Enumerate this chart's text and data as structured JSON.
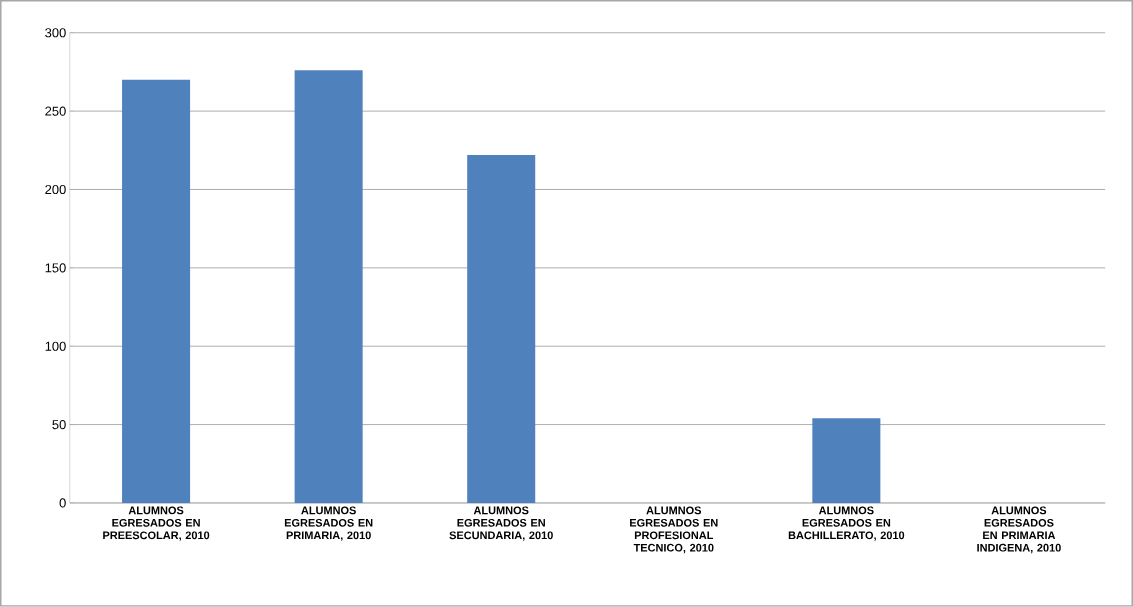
{
  "chart_data": {
    "type": "bar",
    "categories": [
      "ALUMNOS EGRESADOS EN PREESCOLAR, 2010",
      "ALUMNOS EGRESADOS EN PRIMARIA, 2010",
      "ALUMNOS EGRESADOS EN SECUNDARIA, 2010",
      "ALUMNOS EGRESADOS EN PROFESIONAL TECNICO, 2010",
      "ALUMNOS EGRESADOS EN BACHILLERATO, 2010",
      "ALUMNOS EGRESADOS EN PRIMARIA INDIGENA, 2010"
    ],
    "values": [
      270,
      276,
      222,
      0,
      54,
      0
    ],
    "color": "#4f81bd",
    "ylim": [
      0,
      300
    ],
    "yticks": [
      0,
      50,
      100,
      150,
      200,
      250,
      300
    ],
    "grid": "y"
  }
}
